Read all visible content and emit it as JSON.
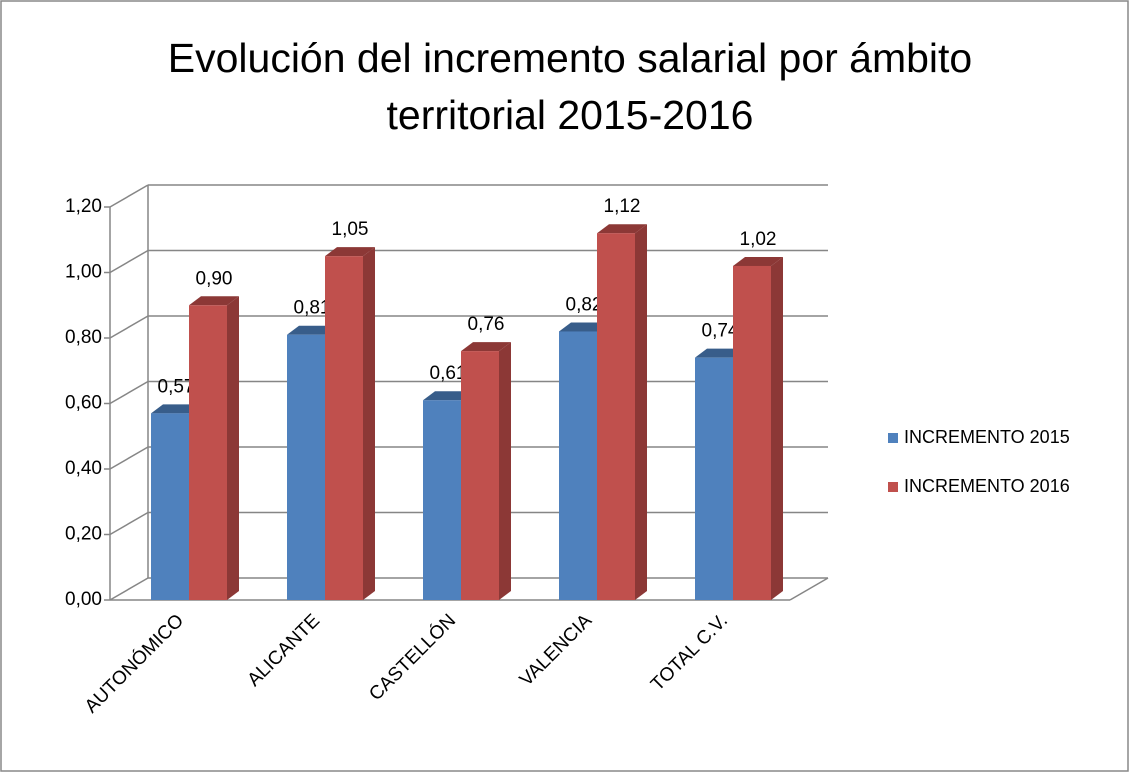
{
  "chart_data": {
    "type": "bar3d",
    "title": "Evolución del incremento salarial por ámbito territorial 2015-2016",
    "categories": [
      "AUTONÓMICO",
      "ALICANTE",
      "CASTELLÓN",
      "VALENCIA",
      "TOTAL C.V."
    ],
    "series": [
      {
        "name": "INCREMENTO 2015",
        "color": "#4f81bd",
        "side": "#385d8a",
        "values": [
          0.57,
          0.81,
          0.61,
          0.82,
          0.74
        ],
        "value_labels": [
          "0,57",
          "0,81",
          "0,61",
          "0,82",
          "0,74"
        ]
      },
      {
        "name": "INCREMENTO 2016",
        "color": "#c0504d",
        "side": "#8c3836",
        "values": [
          0.9,
          1.05,
          0.76,
          1.12,
          1.02
        ],
        "value_labels": [
          "0,90",
          "1,05",
          "0,76",
          "1,12",
          "1,02"
        ]
      }
    ],
    "ylim": [
      0,
      1.2
    ],
    "yticks": [
      {
        "value": 0,
        "label": "0,00"
      },
      {
        "value": 0.2,
        "label": "0,20"
      },
      {
        "value": 0.4,
        "label": "0,40"
      },
      {
        "value": 0.6,
        "label": "0,60"
      },
      {
        "value": 0.8,
        "label": "0,80"
      },
      {
        "value": 1.0,
        "label": "1,00"
      },
      {
        "value": 1.2,
        "label": "1,20"
      }
    ],
    "grid": true,
    "legend": "right"
  }
}
